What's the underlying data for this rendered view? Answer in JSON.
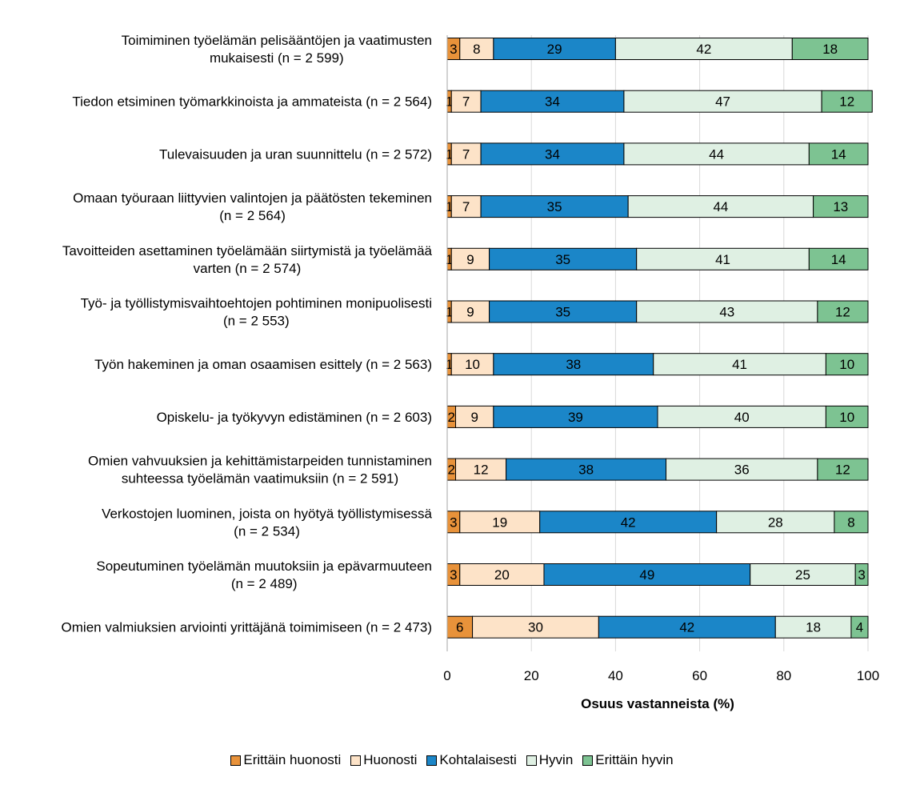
{
  "chart_data": {
    "type": "bar",
    "orientation": "horizontal",
    "stacked": true,
    "title": "",
    "xlabel": "Osuus vastanneista (%)",
    "ylabel": "",
    "xlim": [
      0,
      100
    ],
    "xticks": [
      "0",
      "20",
      "40",
      "60",
      "80",
      "100"
    ],
    "grid": true,
    "legend_position": "bottom",
    "categories": [
      [
        "Toimiminen työelämän pelisääntöjen ja vaatimusten",
        "mukaisesti (n = 2 599)"
      ],
      [
        "Tiedon etsiminen työmarkkinoista ja ammateista (n = 2 564)"
      ],
      [
        "Tulevaisuuden ja uran suunnittelu (n = 2 572)"
      ],
      [
        "Omaan työuraan liittyvien valintojen ja päätösten tekeminen",
        "(n = 2 564)"
      ],
      [
        "Tavoitteiden asettaminen työelämään siirtymistä ja työelämää",
        "varten (n = 2 574)"
      ],
      [
        "Työ- ja työllistymisvaihtoehtojen pohtiminen monipuolisesti",
        "(n = 2 553)"
      ],
      [
        "Työn hakeminen ja oman osaamisen esittely (n = 2 563)"
      ],
      [
        "Opiskelu- ja työkyvyn edistäminen (n = 2 603)"
      ],
      [
        "Omien vahvuuksien ja kehittämistarpeiden tunnistaminen",
        "suhteessa työelämän vaatimuksiin (n = 2 591)"
      ],
      [
        "Verkostojen luominen, joista on hyötyä työllistymisessä",
        "(n = 2 534)"
      ],
      [
        "Sopeutuminen työelämän muutoksiin ja epävarmuuteen",
        "(n = 2 489)"
      ],
      [
        "Omien valmiuksien arviointi yrittäjänä toimimiseen (n = 2 473)"
      ]
    ],
    "series": [
      {
        "name": "Erittäin huonosti",
        "color": "#e8923a",
        "values": [
          3,
          1,
          1,
          1,
          1,
          1,
          1,
          2,
          2,
          3,
          3,
          6
        ]
      },
      {
        "name": "Huonosti",
        "color": "#fde3c8",
        "values": [
          8,
          7,
          7,
          7,
          9,
          9,
          10,
          9,
          12,
          19,
          20,
          30
        ]
      },
      {
        "name": "Kohtalaisesti",
        "color": "#1b86c8",
        "values": [
          29,
          34,
          34,
          35,
          35,
          35,
          38,
          39,
          38,
          42,
          49,
          42
        ]
      },
      {
        "name": "Hyvin",
        "color": "#dff0e3",
        "values": [
          42,
          47,
          44,
          44,
          41,
          43,
          41,
          40,
          36,
          28,
          25,
          18
        ]
      },
      {
        "name": "Erittäin hyvin",
        "color": "#7dc392",
        "values": [
          18,
          12,
          14,
          13,
          14,
          12,
          10,
          10,
          12,
          8,
          3,
          4
        ]
      }
    ]
  }
}
